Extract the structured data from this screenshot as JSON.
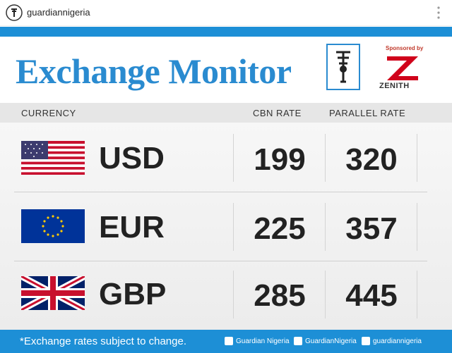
{
  "post": {
    "username": "guardiannigeria"
  },
  "header": {
    "title": "Exchange Monitor",
    "sponsor_label": "Sponsored by",
    "sponsor": "ZENITH"
  },
  "table": {
    "columns": [
      "CURRENCY",
      "CBN RATE",
      "PARALLEL RATE"
    ],
    "rows": [
      [
        "USD",
        199,
        320
      ],
      [
        "EUR",
        225,
        357
      ],
      [
        "GBP",
        285,
        445
      ]
    ]
  },
  "footer": {
    "note": "*Exchange rates subject to change.",
    "social": [
      "Guardian Nigeria",
      "GuardianNigeria",
      "guardiannigeria"
    ]
  }
}
